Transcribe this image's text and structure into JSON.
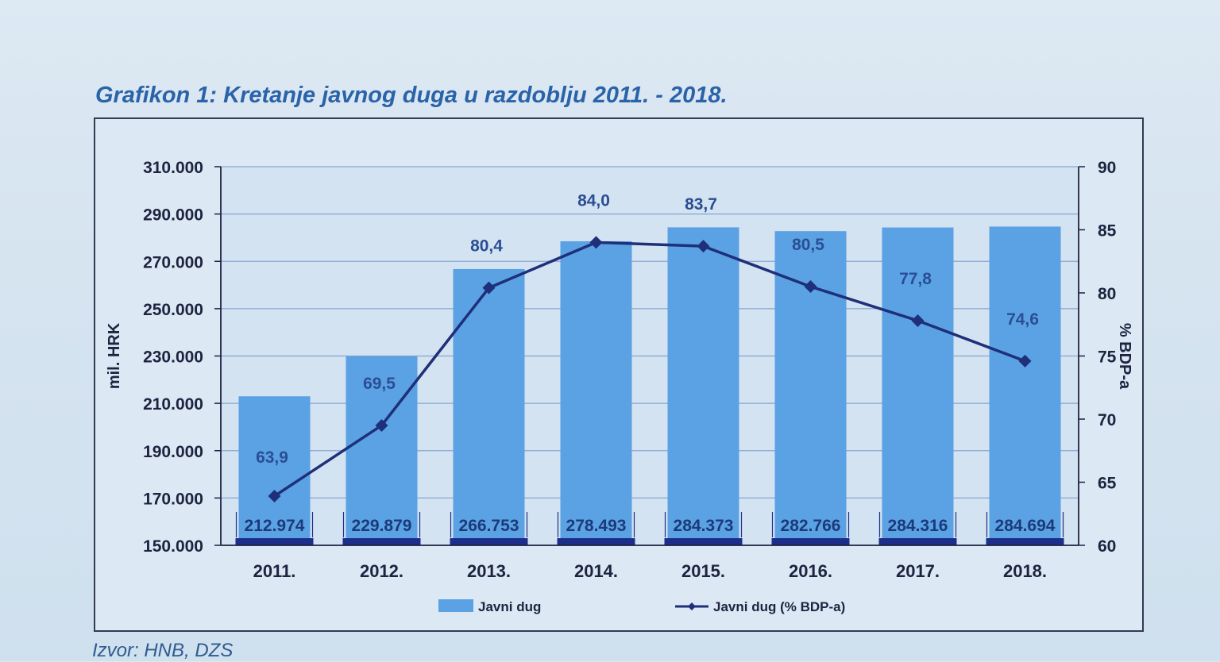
{
  "title": "Grafikon 1: Kretanje javnog duga u razdoblju 2011. - 2018.",
  "source": "Izvor: HNB, DZS",
  "chart_data": {
    "type": "bar+line",
    "categories": [
      "2011.",
      "2012.",
      "2013.",
      "2014.",
      "2015.",
      "2016.",
      "2017.",
      "2018."
    ],
    "series": [
      {
        "name": "Javni dug",
        "kind": "bar",
        "axis": "left",
        "values": [
          212974,
          229879,
          266753,
          278493,
          284373,
          282766,
          284316,
          284694
        ],
        "labels": [
          "212.974",
          "229.879",
          "266.753",
          "278.493",
          "284.373",
          "282.766",
          "284.316",
          "284.694"
        ],
        "color": "#5aa2e4"
      },
      {
        "name": "Javni dug (% BDP-a)",
        "kind": "line",
        "axis": "right",
        "values": [
          63.9,
          69.5,
          80.4,
          84.0,
          83.7,
          80.5,
          77.8,
          74.6
        ],
        "labels": [
          "63,9",
          "69,5",
          "80,4",
          "84,0",
          "83,7",
          "80,5",
          "77,8",
          "74,6"
        ],
        "color": "#1f2f7a"
      }
    ],
    "ylabel_left": "mil. HRK",
    "ylabel_right": "% BDP-a",
    "ylim_left": [
      150000,
      310000
    ],
    "ylim_right": [
      60,
      90
    ],
    "yticks_left": [
      "150.000",
      "170.000",
      "190.000",
      "210.000",
      "230.000",
      "250.000",
      "270.000",
      "290.000",
      "310.000"
    ],
    "yticks_right": [
      "60",
      "65",
      "70",
      "75",
      "80",
      "85",
      "90"
    ],
    "legend": [
      "Javni dug",
      "Javni dug (% BDP-a)"
    ],
    "legend_position": "bottom",
    "grid": true
  },
  "colors": {
    "title": "#2a63a8",
    "bar": "#5aa2e4",
    "line": "#1f2f7a",
    "grid": "#6f8fc4"
  }
}
